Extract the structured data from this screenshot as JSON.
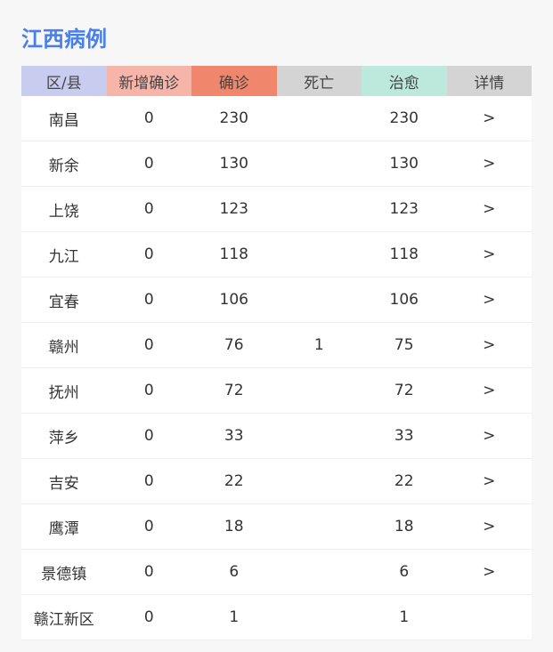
{
  "title": "江西病例",
  "headers": [
    {
      "label": "区/县",
      "color": "#c8ccee"
    },
    {
      "label": "新增确诊",
      "color": "#f6b5a8"
    },
    {
      "label": "确诊",
      "color": "#f0876c"
    },
    {
      "label": "死亡",
      "color": "#d4d4d4"
    },
    {
      "label": "治愈",
      "color": "#bde9dc"
    },
    {
      "label": "详情",
      "color": "#d4d4d4"
    }
  ],
  "rows": [
    [
      "南昌",
      "0",
      "230",
      "",
      "230",
      ">"
    ],
    [
      "新余",
      "0",
      "130",
      "",
      "130",
      ">"
    ],
    [
      "上饶",
      "0",
      "123",
      "",
      "123",
      ">"
    ],
    [
      "九江",
      "0",
      "118",
      "",
      "118",
      ">"
    ],
    [
      "宜春",
      "0",
      "106",
      "",
      "106",
      ">"
    ],
    [
      "赣州",
      "0",
      "76",
      "1",
      "75",
      ">"
    ],
    [
      "抚州",
      "0",
      "72",
      "",
      "72",
      ">"
    ],
    [
      "萍乡",
      "0",
      "33",
      "",
      "33",
      ">"
    ],
    [
      "吉安",
      "0",
      "22",
      "",
      "22",
      ">"
    ],
    [
      "鹰潭",
      "0",
      "18",
      "",
      "18",
      ">"
    ],
    [
      "景德镇",
      "0",
      "6",
      "",
      "6",
      ">"
    ],
    [
      "赣江新区",
      "0",
      "1",
      "",
      "1",
      ""
    ]
  ]
}
